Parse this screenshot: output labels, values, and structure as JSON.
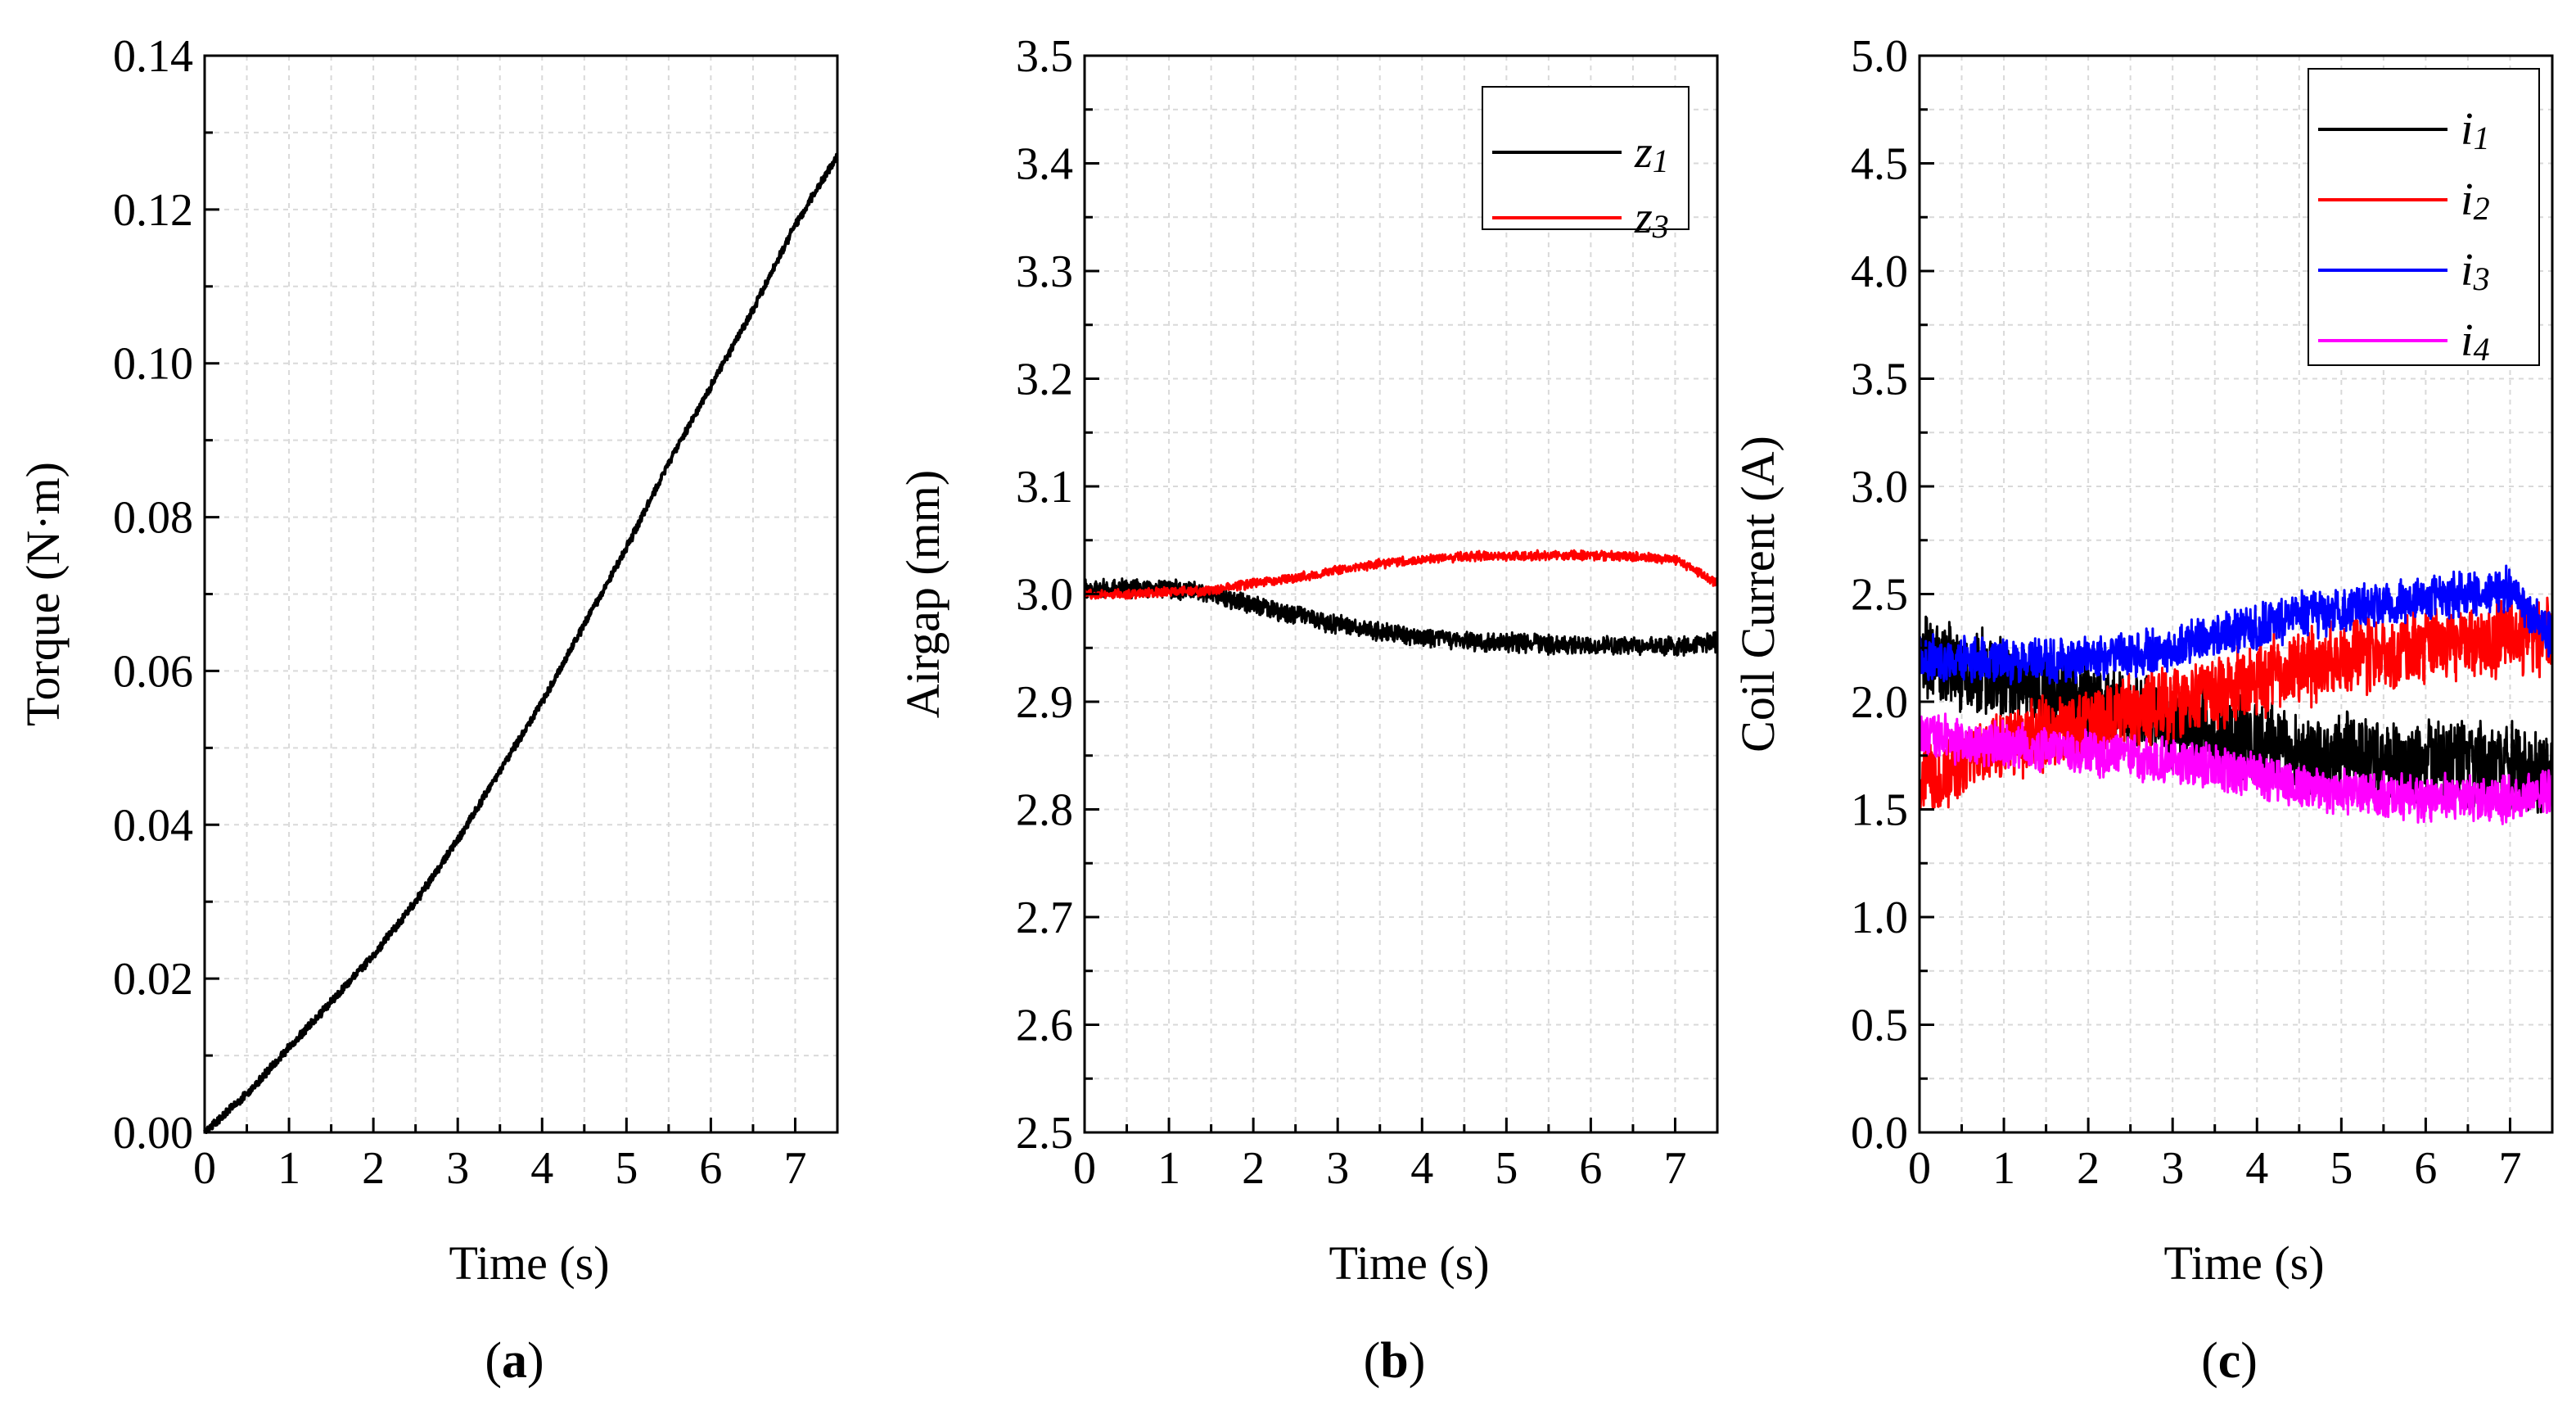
{
  "chart_data": [
    {
      "id": "a",
      "type": "line",
      "panel_label": "a",
      "xlabel": "Time (s)",
      "ylabel": "Torque (N·m)",
      "xlim": [
        0,
        7.5
      ],
      "ylim": [
        0,
        0.14
      ],
      "xticks": [
        "0",
        "1",
        "2",
        "3",
        "4",
        "5",
        "6",
        "7"
      ],
      "yticks": [
        "0.00",
        "0.02",
        "0.04",
        "0.06",
        "0.08",
        "0.10",
        "0.12",
        "0.14"
      ],
      "grid": true,
      "legend": null,
      "series": [
        {
          "name": "Torque",
          "color": "#000000",
          "noise": 0.0006,
          "x": [
            0,
            0.5,
            1,
            1.5,
            2,
            2.5,
            3,
            3.5,
            4,
            4.5,
            5,
            5.5,
            6,
            6.5,
            7,
            7.5
          ],
          "y": [
            0,
            0.005,
            0.011,
            0.017,
            0.023,
            0.03,
            0.038,
            0.047,
            0.056,
            0.066,
            0.076,
            0.087,
            0.097,
            0.107,
            0.118,
            0.127
          ]
        }
      ]
    },
    {
      "id": "b",
      "type": "line",
      "panel_label": "b",
      "xlabel": "Time (s)",
      "ylabel": "Airgap (mm)",
      "xlim": [
        0,
        7.5
      ],
      "ylim": [
        2.5,
        3.5
      ],
      "xticks": [
        "0",
        "1",
        "2",
        "3",
        "4",
        "5",
        "6",
        "7"
      ],
      "yticks": [
        "2.5",
        "2.6",
        "2.7",
        "2.8",
        "2.9",
        "3.0",
        "3.1",
        "3.2",
        "3.3",
        "3.4",
        "3.5"
      ],
      "grid": true,
      "legend": "top-right",
      "series": [
        {
          "name": "z",
          "subscript": "1",
          "color": "#000000",
          "noise": 0.01,
          "x": [
            0,
            0.5,
            1,
            1.5,
            2,
            2.5,
            3,
            3.5,
            4,
            4.5,
            5,
            5.5,
            6,
            6.5,
            7,
            7.5
          ],
          "y": [
            3.005,
            3.005,
            3.005,
            3.0,
            2.99,
            2.98,
            2.972,
            2.965,
            2.96,
            2.957,
            2.955,
            2.953,
            2.952,
            2.952,
            2.952,
            2.955
          ]
        },
        {
          "name": "z",
          "subscript": "3",
          "color": "#ff0000",
          "noise": 0.005,
          "x": [
            0,
            0.5,
            1,
            1.5,
            2,
            2.5,
            3,
            3.5,
            4,
            4.5,
            5,
            5.5,
            6,
            6.5,
            7,
            7.5
          ],
          "y": [
            3.0,
            3.0,
            3.002,
            3.003,
            3.01,
            3.015,
            3.022,
            3.028,
            3.032,
            3.035,
            3.035,
            3.036,
            3.036,
            3.035,
            3.032,
            3.01
          ]
        }
      ]
    },
    {
      "id": "c",
      "type": "line",
      "panel_label": "c",
      "xlabel": "Time (s)",
      "ylabel": "Coil Current (A)",
      "xlim": [
        0,
        7.5
      ],
      "ylim": [
        0,
        5.0
      ],
      "xticks": [
        "0",
        "1",
        "2",
        "3",
        "4",
        "5",
        "6",
        "7"
      ],
      "yticks": [
        "0.0",
        "0.5",
        "1.0",
        "1.5",
        "2.0",
        "2.5",
        "3.0",
        "3.5",
        "4.0",
        "4.5",
        "5.0"
      ],
      "grid": true,
      "legend": "top-right",
      "series": [
        {
          "name": "i",
          "subscript": "1",
          "color": "#000000",
          "noise": 0.22,
          "x": [
            0,
            0.5,
            1,
            1.5,
            2,
            2.5,
            3,
            3.5,
            4,
            4.5,
            5,
            5.5,
            6,
            6.5,
            7,
            7.5
          ],
          "y": [
            2.2,
            2.15,
            2.1,
            2.05,
            2.0,
            1.95,
            1.9,
            1.85,
            1.8,
            1.75,
            1.75,
            1.72,
            1.72,
            1.72,
            1.7,
            1.65
          ]
        },
        {
          "name": "i",
          "subscript": "2",
          "color": "#ff0000",
          "noise": 0.2,
          "x": [
            0,
            0.5,
            1,
            1.5,
            2,
            2.5,
            3,
            3.5,
            4,
            4.5,
            5,
            5.5,
            6,
            6.5,
            7,
            7.5
          ],
          "y": [
            1.6,
            1.7,
            1.8,
            1.85,
            1.9,
            1.95,
            2.0,
            2.05,
            2.1,
            2.15,
            2.2,
            2.22,
            2.25,
            2.28,
            2.3,
            2.3
          ]
        },
        {
          "name": "i",
          "subscript": "3",
          "color": "#0000ff",
          "noise": 0.12,
          "x": [
            0,
            0.5,
            1,
            1.5,
            2,
            2.5,
            3,
            3.5,
            4,
            4.5,
            5,
            5.5,
            6,
            6.5,
            7,
            7.5
          ],
          "y": [
            2.2,
            2.2,
            2.2,
            2.2,
            2.2,
            2.22,
            2.25,
            2.3,
            2.35,
            2.4,
            2.42,
            2.45,
            2.48,
            2.5,
            2.52,
            2.3
          ]
        },
        {
          "name": "i",
          "subscript": "4",
          "color": "#ff00ff",
          "noise": 0.12,
          "x": [
            0,
            0.5,
            1,
            1.5,
            2,
            2.5,
            3,
            3.5,
            4,
            4.5,
            5,
            5.5,
            6,
            6.5,
            7,
            7.5
          ],
          "y": [
            1.85,
            1.82,
            1.8,
            1.78,
            1.76,
            1.74,
            1.72,
            1.7,
            1.65,
            1.6,
            1.58,
            1.56,
            1.55,
            1.55,
            1.55,
            1.6
          ]
        }
      ]
    }
  ]
}
